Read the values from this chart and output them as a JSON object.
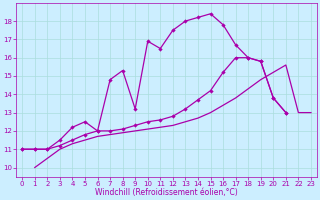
{
  "xlabel": "Windchill (Refroidissement éolien,°C)",
  "background_color": "#cceeff",
  "grid_color": "#aadddd",
  "line_color": "#aa00aa",
  "xlim": [
    -0.5,
    23.5
  ],
  "ylim": [
    9.5,
    19.0
  ],
  "yticks": [
    10,
    11,
    12,
    13,
    14,
    15,
    16,
    17,
    18
  ],
  "xticks": [
    0,
    1,
    2,
    3,
    4,
    5,
    6,
    7,
    8,
    9,
    10,
    11,
    12,
    13,
    14,
    15,
    16,
    17,
    18,
    19,
    20,
    21,
    22,
    23
  ],
  "line1_x": [
    0,
    1,
    2,
    3,
    4,
    5,
    6,
    7,
    8,
    9,
    10,
    11,
    12,
    13,
    14,
    15,
    16,
    17,
    18,
    19,
    20,
    21
  ],
  "line1_y": [
    11,
    11,
    11,
    11.5,
    12.2,
    12.5,
    12.0,
    14.8,
    15.3,
    13.2,
    16.9,
    16.5,
    17.5,
    18.0,
    18.2,
    18.4,
    17.8,
    16.7,
    16.0,
    15.8,
    13.8,
    13.0
  ],
  "line2_x": [
    0,
    1,
    2,
    3,
    4,
    5,
    6,
    7,
    8,
    9,
    10,
    11,
    12,
    13,
    14,
    15,
    16,
    17,
    18,
    19,
    20,
    21
  ],
  "line2_y": [
    11,
    11,
    11,
    11.2,
    11.5,
    11.8,
    12.0,
    12.0,
    12.1,
    12.3,
    12.5,
    12.6,
    12.8,
    13.2,
    13.7,
    14.2,
    15.2,
    16.0,
    16.0,
    15.8,
    13.8,
    13.0
  ],
  "line3_x": [
    1,
    2,
    3,
    4,
    5,
    6,
    7,
    8,
    9,
    10,
    11,
    12,
    13,
    14,
    15,
    16,
    17,
    18,
    19,
    20,
    21,
    22,
    23
  ],
  "line3_y": [
    10.0,
    10.5,
    11.0,
    11.3,
    11.5,
    11.7,
    11.8,
    11.9,
    12.0,
    12.1,
    12.2,
    12.3,
    12.5,
    12.7,
    13.0,
    13.4,
    13.8,
    14.3,
    14.8,
    15.2,
    15.6,
    13.0,
    13.0
  ],
  "xlabel_fontsize": 5.5,
  "tick_fontsize": 5,
  "linewidth": 0.9,
  "markersize": 2.2
}
